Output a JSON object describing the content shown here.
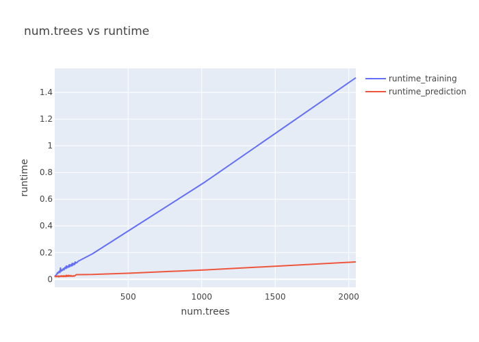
{
  "chart_data": {
    "type": "line",
    "title": "num.trees vs runtime",
    "xlabel": "num.trees",
    "ylabel": "runtime",
    "xlim": [
      1,
      2048
    ],
    "ylim": [
      -0.06,
      1.58
    ],
    "x_ticks": [
      500,
      1000,
      1500,
      2000
    ],
    "x_tick_labels": [
      "500",
      "1000",
      "1500",
      "2000"
    ],
    "y_ticks": [
      0,
      0.2,
      0.4,
      0.6,
      0.8,
      1,
      1.2,
      1.4
    ],
    "y_tick_labels": [
      "0",
      "0.2",
      "0.4",
      "0.6",
      "0.8",
      "1",
      "1.2",
      "1.4"
    ],
    "grid": true,
    "legend_position": "right",
    "series": [
      {
        "name": "runtime_training",
        "color": "#636efa",
        "x": [
          1,
          4,
          8,
          12,
          16,
          20,
          24,
          28,
          32,
          36,
          40,
          44,
          48,
          52,
          56,
          60,
          64,
          68,
          72,
          76,
          80,
          84,
          88,
          92,
          96,
          100,
          104,
          108,
          112,
          116,
          120,
          124,
          128,
          132,
          136,
          140,
          144,
          148,
          152,
          156,
          160,
          256,
          512,
          1024,
          2048
        ],
        "y": [
          0.02,
          0.025,
          0.03,
          0.032,
          0.04,
          0.05,
          0.045,
          0.055,
          0.06,
          0.05,
          0.085,
          0.06,
          0.07,
          0.065,
          0.075,
          0.08,
          0.07,
          0.085,
          0.09,
          0.08,
          0.1,
          0.085,
          0.095,
          0.1,
          0.09,
          0.11,
          0.095,
          0.105,
          0.11,
          0.1,
          0.12,
          0.105,
          0.115,
          0.12,
          0.11,
          0.13,
          0.12,
          0.125,
          0.125,
          0.13,
          0.135,
          0.19,
          0.37,
          0.73,
          1.51
        ]
      },
      {
        "name": "runtime_prediction",
        "color": "#ef553b",
        "x": [
          1,
          4,
          8,
          12,
          16,
          20,
          24,
          28,
          32,
          36,
          40,
          44,
          48,
          52,
          56,
          60,
          64,
          68,
          72,
          76,
          80,
          84,
          88,
          92,
          96,
          100,
          104,
          108,
          112,
          116,
          120,
          124,
          128,
          132,
          136,
          140,
          144,
          148,
          152,
          156,
          160,
          256,
          512,
          1024,
          2048
        ],
        "y": [
          0.025,
          0.02,
          0.025,
          0.02,
          0.023,
          0.02,
          0.025,
          0.018,
          0.024,
          0.02,
          0.025,
          0.02,
          0.026,
          0.021,
          0.025,
          0.02,
          0.027,
          0.021,
          0.025,
          0.02,
          0.03,
          0.022,
          0.028,
          0.022,
          0.03,
          0.023,
          0.027,
          0.022,
          0.028,
          0.023,
          0.025,
          0.022,
          0.027,
          0.023,
          0.026,
          0.028,
          0.032,
          0.035,
          0.034,
          0.035,
          0.035,
          0.036,
          0.046,
          0.07,
          0.13
        ]
      }
    ]
  }
}
